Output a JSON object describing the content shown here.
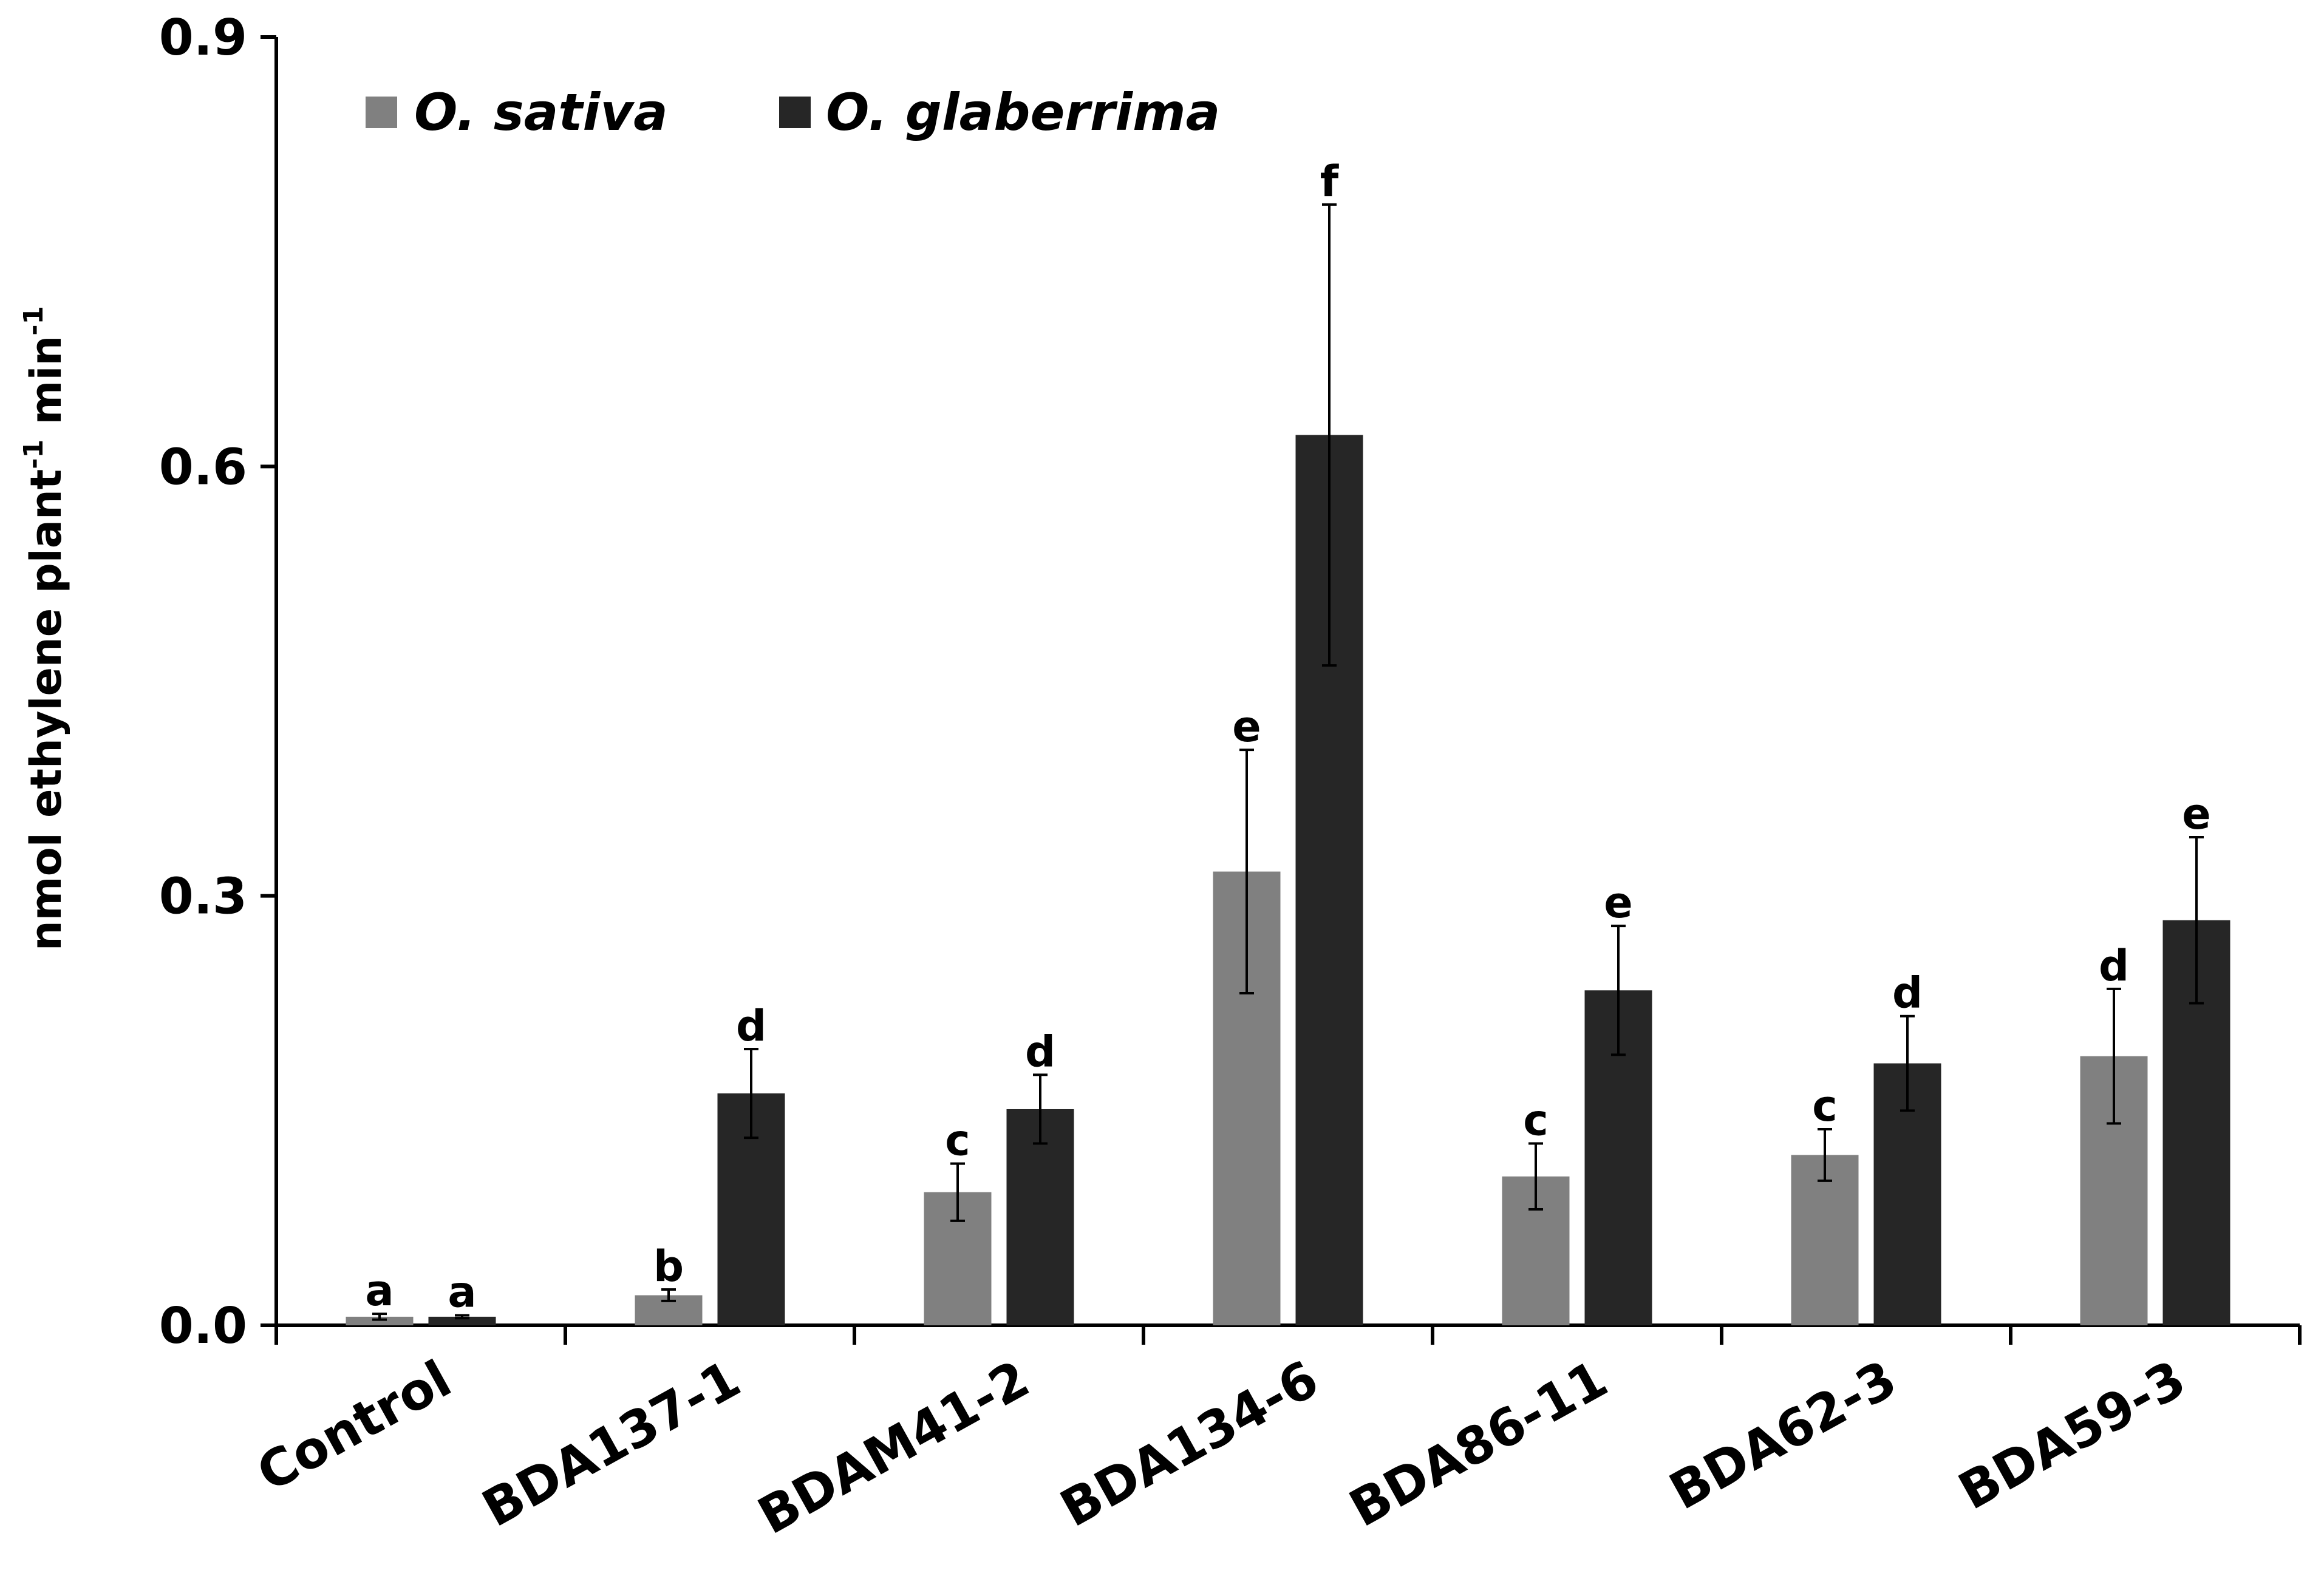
{
  "chart_data": {
    "type": "bar",
    "title": "",
    "xlabel": "",
    "ylabel": {
      "base": "nmol ethylene plant",
      "sup1": "-1",
      "mid": " min",
      "sup2": "-1"
    },
    "ylim": [
      0,
      0.9
    ],
    "yticks": [
      "0.0",
      "0.3",
      "0.6",
      "0.9"
    ],
    "ytick_values": [
      0,
      0.3,
      0.6,
      0.9
    ],
    "legend_position": "top-left",
    "categories": [
      "Control",
      "BDA137-1",
      "BDAM41-2",
      "BDA134-6",
      "BDA86-11",
      "BDA62-3",
      "BDA59-3"
    ],
    "series": [
      {
        "name": "O. sativa",
        "color": "#808080",
        "values": [
          0.006,
          0.021,
          0.093,
          0.317,
          0.104,
          0.119,
          0.188
        ],
        "errors": [
          0.002,
          0.004,
          0.02,
          0.085,
          0.023,
          0.018,
          0.047
        ],
        "letters": [
          "a",
          "b",
          "c",
          "e",
          "c",
          "c",
          "d"
        ]
      },
      {
        "name": "O. glaberrima",
        "color": "#262626",
        "values": [
          0.006,
          0.162,
          0.151,
          0.622,
          0.234,
          0.183,
          0.283
        ],
        "errors": [
          0.001,
          0.031,
          0.024,
          0.161,
          0.045,
          0.033,
          0.058
        ],
        "letters": [
          "a",
          "d",
          "d",
          "f",
          "e",
          "d",
          "e"
        ]
      }
    ]
  }
}
